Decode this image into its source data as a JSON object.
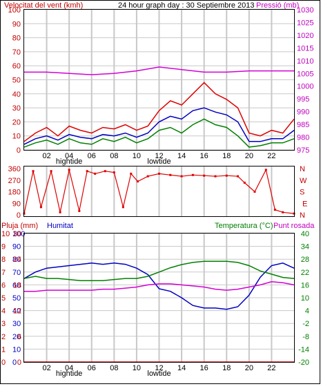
{
  "colors": {
    "wind": "#e00000",
    "wind_avg": "#0000c0",
    "wind_green": "#008000",
    "pressure": "#d400d4",
    "humidity": "#0000c0",
    "temperature": "#008000",
    "dewpoint": "#d400d4",
    "rain": "#e00000",
    "grid": "#c8c8c8",
    "frame": "#000000",
    "axis_red": "#c00000",
    "axis_magenta": "#c000c0",
    "axis_green": "#008000",
    "axis_blue": "#0000c0"
  },
  "chart_data": [
    {
      "type": "line",
      "title": "24 hour graph day : 30 Septiembre 2013",
      "ylabel_left": "Velocitat del vent (kmh)",
      "ylabel_right": "Pressió (mb)",
      "x_ticks": [
        "02",
        "04",
        "06",
        "08",
        "10",
        "12",
        "14",
        "16",
        "18",
        "20",
        "22"
      ],
      "x_tick_markers": {
        "04": "hightide",
        "12": "lowtide"
      },
      "xlim": [
        0,
        24
      ],
      "ylim_left": [
        0,
        100
      ],
      "yticks_left": [
        0,
        10,
        20,
        30,
        40,
        50,
        60,
        70,
        80,
        90,
        100
      ],
      "ylim_right": [
        975,
        1030
      ],
      "yticks_right": [
        975,
        980,
        985,
        990,
        995,
        1000,
        1005,
        1010,
        1015,
        1020,
        1025,
        1030
      ],
      "series": [
        {
          "color_key": "wind",
          "axis": "left",
          "x": [
            0,
            1,
            2,
            3,
            4,
            5,
            6,
            7,
            8,
            9,
            10,
            11,
            12,
            13,
            14,
            15,
            16,
            17,
            18,
            19,
            20,
            21,
            22,
            23,
            24
          ],
          "y": [
            6,
            12,
            16,
            10,
            17,
            14,
            12,
            16,
            15,
            18,
            14,
            17,
            28,
            35,
            32,
            40,
            48,
            40,
            36,
            30,
            12,
            10,
            14,
            12,
            22
          ]
        },
        {
          "color_key": "wind_avg",
          "axis": "left",
          "x": [
            0,
            1,
            2,
            3,
            4,
            5,
            6,
            7,
            8,
            9,
            10,
            11,
            12,
            13,
            14,
            15,
            16,
            17,
            18,
            19,
            20,
            21,
            22,
            23,
            24
          ],
          "y": [
            4,
            8,
            10,
            7,
            11,
            9,
            8,
            11,
            10,
            12,
            9,
            12,
            20,
            24,
            22,
            28,
            30,
            27,
            25,
            20,
            6,
            6,
            8,
            8,
            14
          ]
        },
        {
          "color_key": "wind_green",
          "axis": "left",
          "x": [
            0,
            1,
            2,
            3,
            4,
            5,
            6,
            7,
            8,
            9,
            10,
            11,
            12,
            13,
            14,
            15,
            16,
            17,
            18,
            19,
            20,
            21,
            22,
            23,
            24
          ],
          "y": [
            2,
            5,
            7,
            4,
            8,
            5,
            4,
            8,
            6,
            9,
            5,
            8,
            14,
            16,
            12,
            18,
            22,
            18,
            16,
            10,
            2,
            3,
            5,
            5,
            8
          ]
        },
        {
          "color_key": "pressure",
          "axis": "right",
          "x": [
            0,
            2,
            4,
            6,
            8,
            10,
            12,
            14,
            16,
            18,
            20,
            22,
            24
          ],
          "y": [
            1005.5,
            1005.5,
            1005,
            1004.5,
            1005,
            1006,
            1007.5,
            1006.5,
            1005.5,
            1005.5,
            1006,
            1006,
            1006
          ]
        }
      ]
    },
    {
      "type": "line",
      "ylim": [
        0,
        360
      ],
      "yticks": [
        0,
        90,
        180,
        270,
        360
      ],
      "right_labels": [
        "N",
        "W",
        "S",
        "E",
        "N"
      ],
      "series": [
        {
          "color_key": "wind",
          "axis": "left",
          "x": [
            0,
            0.8,
            1.5,
            2.4,
            3.2,
            4.0,
            4.9,
            5.6,
            6.3,
            7.2,
            8.0,
            8.8,
            9.5,
            10.1,
            11.0,
            12.0,
            13.0,
            14.0,
            15.0,
            16.0,
            17.0,
            18.0,
            19.0,
            19.6,
            20.5,
            21.5,
            22.3,
            23.0,
            24.0
          ],
          "y": [
            10,
            340,
            60,
            340,
            20,
            350,
            30,
            340,
            320,
            340,
            330,
            60,
            320,
            260,
            300,
            320,
            310,
            300,
            310,
            305,
            300,
            305,
            300,
            250,
            180,
            350,
            40,
            20,
            10
          ]
        }
      ]
    },
    {
      "type": "line",
      "ylabel_rain": "Pluja (mm)",
      "ylabel_hum": "Humitat",
      "ylabel_temp": "Temperatura (°C)",
      "ylabel_dew": "Punt rosada",
      "x_ticks": [
        "02",
        "04",
        "06",
        "08",
        "10",
        "12",
        "14",
        "16",
        "18",
        "20",
        "22"
      ],
      "x_tick_markers": {
        "04": "hightide",
        "12": "lowtide"
      },
      "xlim": [
        0,
        24
      ],
      "ylim_rain": [
        0,
        30
      ],
      "yticks_rain": [
        0,
        1,
        2,
        3,
        4,
        5,
        6,
        7,
        8,
        9,
        10
      ],
      "ylim_hum": [
        0,
        100
      ],
      "yticks_hum": [
        0,
        10,
        20,
        30,
        40,
        50,
        60,
        70,
        80,
        90,
        100
      ],
      "ylim_temp": [
        -20,
        40
      ],
      "yticks_temp": [
        -20,
        -14,
        -8,
        -2,
        4,
        10,
        16,
        22,
        28,
        34,
        40
      ],
      "yticks_mid": [
        0,
        6,
        12,
        18,
        24,
        30
      ],
      "series": [
        {
          "color_key": "humidity",
          "axis": "hum",
          "x": [
            0,
            1,
            2,
            3,
            4,
            5,
            6,
            7,
            8,
            9,
            10,
            11,
            12,
            13,
            14,
            15,
            16,
            17,
            18,
            19,
            20,
            21,
            22,
            23,
            24
          ],
          "y": [
            65,
            70,
            73,
            74,
            75,
            76,
            77,
            76,
            77,
            76,
            73,
            68,
            57,
            55,
            50,
            44,
            42,
            42,
            41,
            43,
            52,
            66,
            75,
            77,
            73
          ]
        },
        {
          "color_key": "temperature",
          "axis": "temp",
          "x": [
            0,
            1,
            2,
            3,
            4,
            5,
            6,
            7,
            8,
            9,
            10,
            11,
            12,
            13,
            14,
            15,
            16,
            17,
            18,
            19,
            20,
            21,
            22,
            23,
            24
          ],
          "y": [
            19,
            20,
            19,
            19,
            18.5,
            18,
            18,
            18,
            18.5,
            19,
            19,
            20,
            22,
            24,
            25.5,
            26.5,
            27,
            27,
            27,
            26.5,
            25,
            22.5,
            21,
            19.5,
            19
          ]
        },
        {
          "color_key": "dewpoint",
          "axis": "temp",
          "x": [
            0,
            1,
            2,
            3,
            4,
            5,
            6,
            7,
            8,
            9,
            10,
            11,
            12,
            13,
            14,
            15,
            16,
            17,
            18,
            19,
            20,
            21,
            22,
            23,
            24
          ],
          "y": [
            13,
            13,
            13.5,
            13.5,
            13.5,
            13.5,
            13.5,
            14,
            14,
            14.5,
            15,
            16,
            16.5,
            16.5,
            16,
            15.5,
            15,
            14,
            13.5,
            14,
            15,
            16,
            17.5,
            17,
            16
          ]
        },
        {
          "color_key": "rain",
          "axis": "rain",
          "x": [
            0,
            24
          ],
          "y": [
            0,
            0
          ]
        }
      ]
    }
  ]
}
